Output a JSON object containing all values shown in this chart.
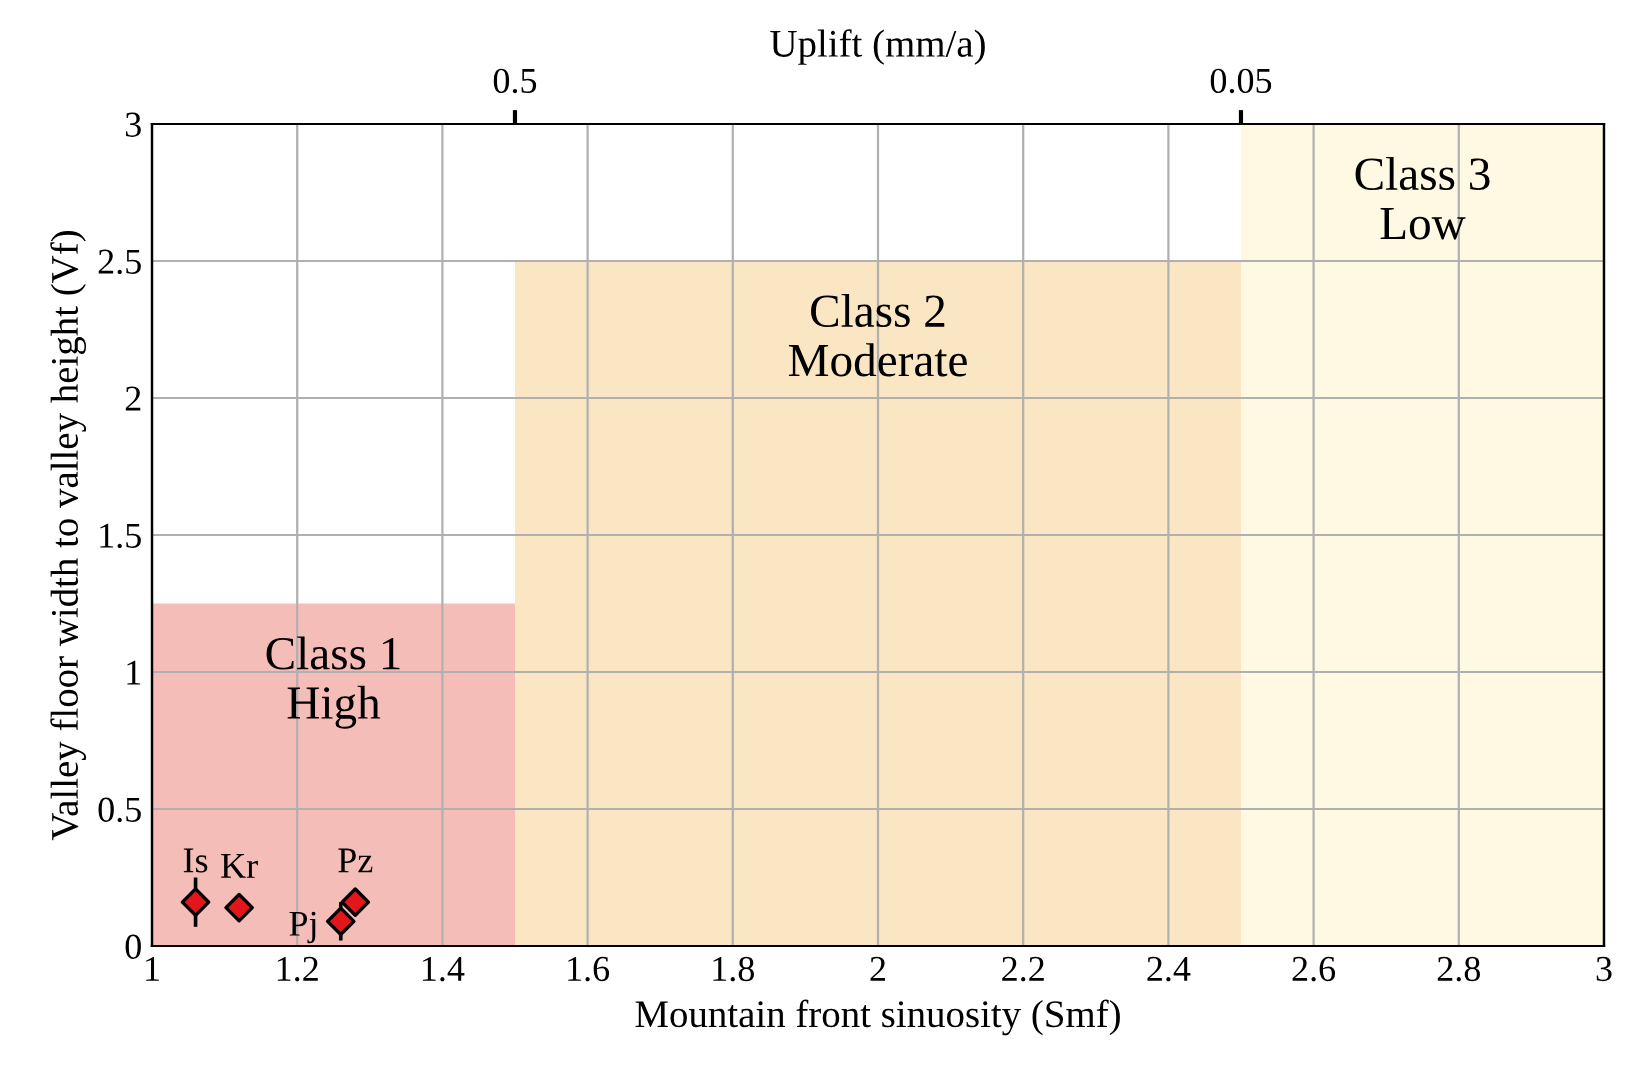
{
  "chart_data": {
    "type": "scatter",
    "xlabel": "Mountain front sinuosity (Smf)",
    "ylabel": "Valley floor width to valley height (Vf)",
    "x2label": "Uplift (mm/a)",
    "xlim": [
      1,
      3
    ],
    "xticks": [
      1,
      1.2,
      1.4,
      1.6,
      1.8,
      2,
      2.2,
      2.4,
      2.6,
      2.8,
      3
    ],
    "ylim": [
      0,
      3
    ],
    "yticks": [
      0,
      0.5,
      1,
      1.5,
      2,
      2.5,
      3
    ],
    "x2lim": [
      1.581,
      0.01581
    ],
    "x2ticks": [
      0.5,
      0.05
    ],
    "log": "x2",
    "grid": true,
    "series": [
      {
        "type": "area",
        "color": "#f5bdb8",
        "x": [
          1,
          1.5
        ],
        "values": [
          1.25,
          1.25
        ]
      },
      {
        "type": "area",
        "color": "#fbe6c3",
        "x": [
          1.5,
          2.5
        ],
        "values": [
          2.5,
          2.5
        ]
      },
      {
        "type": "area",
        "color": "#fff8e2",
        "x": [
          2.5,
          3
        ],
        "values": [
          3,
          3
        ]
      },
      {
        "marker": "diamond",
        "color": "#e3161c",
        "x": [
          1.06,
          1.12,
          1.26,
          1.28
        ],
        "values": [
          0.16,
          0.14,
          0.09,
          0.16
        ],
        "errors": [
          0.09,
          0.04,
          0.07,
          0.05
        ]
      }
    ],
    "annotations": [
      {
        "text": "Is",
        "x": 1.06,
        "y": 0.16
      },
      {
        "text": "Kr",
        "x": 1.12,
        "y": 0.14
      },
      {
        "text": "Pj",
        "x": 1.26,
        "y": 0.09
      },
      {
        "text": "Pz",
        "x": 1.28,
        "y": 0.16
      },
      "Class 1\nHigh",
      "Class 2\nModerate",
      "Class 3\nLow"
    ]
  }
}
